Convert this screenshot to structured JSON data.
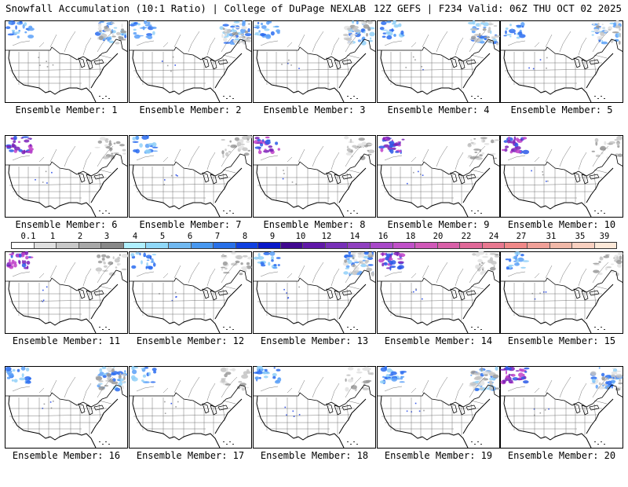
{
  "header": {
    "left": "Snowfall Accumulation (10:1 Ratio) | College of DuPage NEXLAB",
    "right": "12Z GEFS | F234 Valid: 06Z THU OCT 02 2025"
  },
  "legend": {
    "labels": [
      "0.1",
      "1",
      "2",
      "3",
      "4",
      "5",
      "6",
      "7",
      "8",
      "9",
      "10",
      "12",
      "14",
      "16",
      "18",
      "20",
      "22",
      "24",
      "27",
      "31",
      "35",
      "39"
    ],
    "colors": [
      "#ffffff",
      "#e0e0e0",
      "#c8c8c8",
      "#a8a8a8",
      "#888888",
      "#b0f0ff",
      "#90d8f8",
      "#70b8f0",
      "#4898f0",
      "#2870e8",
      "#1040e0",
      "#0818c8",
      "#400890",
      "#6018a8",
      "#7830b8",
      "#9040c0",
      "#a848c8",
      "#c050c8",
      "#d058b8",
      "#d860a8",
      "#e06898",
      "#e87890",
      "#f08888",
      "#f0a098",
      "#f0b8a8",
      "#f8d0c0",
      "#fce8d8"
    ]
  },
  "panels": [
    {
      "caption": "Ensemble Member: 1",
      "snow": [
        [
          "nw",
          "blue",
          0.5
        ],
        [
          "ne",
          "blue",
          0.7
        ],
        [
          "ne",
          "gray",
          0.6
        ]
      ]
    },
    {
      "caption": "Ensemble Member: 2",
      "snow": [
        [
          "nw",
          "blue",
          0.5
        ],
        [
          "ne",
          "blue",
          0.9
        ],
        [
          "ne",
          "gray",
          0.9
        ]
      ]
    },
    {
      "caption": "Ensemble Member: 3",
      "snow": [
        [
          "nw",
          "blue",
          0.6
        ],
        [
          "ne",
          "blue",
          0.7
        ],
        [
          "ne",
          "gray",
          0.6
        ]
      ]
    },
    {
      "caption": "Ensemble Member: 4",
      "snow": [
        [
          "nw",
          "blue",
          0.5
        ],
        [
          "ne",
          "blue",
          0.7
        ],
        [
          "ne",
          "gray",
          0.7
        ]
      ]
    },
    {
      "caption": "Ensemble Member: 5",
      "snow": [
        [
          "nw",
          "blue",
          0.4
        ],
        [
          "ne",
          "blue",
          0.5
        ],
        [
          "ne",
          "gray",
          0.6
        ]
      ]
    },
    {
      "caption": "Ensemble Member: 6",
      "snow": [
        [
          "nw",
          "purple",
          0.9
        ],
        [
          "ne",
          "gray",
          0.7
        ]
      ]
    },
    {
      "caption": "Ensemble Member: 7",
      "snow": [
        [
          "nw",
          "blue",
          0.6
        ],
        [
          "ne",
          "gray",
          0.8
        ]
      ]
    },
    {
      "caption": "Ensemble Member: 8",
      "snow": [
        [
          "nw",
          "purple",
          0.6
        ],
        [
          "ne",
          "gray",
          0.7
        ]
      ]
    },
    {
      "caption": "Ensemble Member: 9",
      "snow": [
        [
          "nw",
          "purple",
          0.9
        ],
        [
          "ne",
          "gray",
          0.8
        ]
      ]
    },
    {
      "caption": "Ensemble Member: 10",
      "snow": [
        [
          "nw",
          "purple",
          0.7
        ],
        [
          "ne",
          "gray",
          0.5
        ]
      ]
    },
    {
      "caption": "Ensemble Member: 11",
      "snow": [
        [
          "nw",
          "purple",
          1.0
        ],
        [
          "ne",
          "gray",
          0.6
        ]
      ]
    },
    {
      "caption": "Ensemble Member: 12",
      "snow": [
        [
          "nw",
          "blue",
          0.4
        ],
        [
          "ne",
          "gray",
          0.6
        ]
      ]
    },
    {
      "caption": "Ensemble Member: 13",
      "snow": [
        [
          "nw",
          "blue",
          0.3
        ],
        [
          "ne",
          "blue",
          0.8
        ],
        [
          "ne",
          "gray",
          0.9
        ]
      ]
    },
    {
      "caption": "Ensemble Member: 14",
      "snow": [
        [
          "nw",
          "purple",
          1.0
        ],
        [
          "ne",
          "gray",
          0.7
        ]
      ]
    },
    {
      "caption": "Ensemble Member: 15",
      "snow": [
        [
          "nw",
          "blue",
          0.4
        ],
        [
          "ne",
          "gray",
          0.6
        ]
      ]
    },
    {
      "caption": "Ensemble Member: 16",
      "snow": [
        [
          "nw",
          "blue",
          0.5
        ],
        [
          "ne",
          "blue",
          0.7
        ],
        [
          "ne",
          "gray",
          0.7
        ]
      ]
    },
    {
      "caption": "Ensemble Member: 17",
      "snow": [
        [
          "nw",
          "blue",
          0.3
        ],
        [
          "ne",
          "gray",
          0.6
        ]
      ]
    },
    {
      "caption": "Ensemble Member: 18",
      "snow": [
        [
          "nw",
          "blue",
          0.6
        ],
        [
          "ne",
          "gray",
          0.6
        ]
      ]
    },
    {
      "caption": "Ensemble Member: 19",
      "snow": [
        [
          "nw",
          "blue",
          0.6
        ],
        [
          "ne",
          "blue",
          0.8
        ],
        [
          "ne",
          "gray",
          0.8
        ]
      ]
    },
    {
      "caption": "Ensemble Member: 20",
      "snow": [
        [
          "nw",
          "purple",
          0.9
        ],
        [
          "ne",
          "blue",
          0.7
        ],
        [
          "ne",
          "gray",
          0.7
        ]
      ]
    }
  ]
}
